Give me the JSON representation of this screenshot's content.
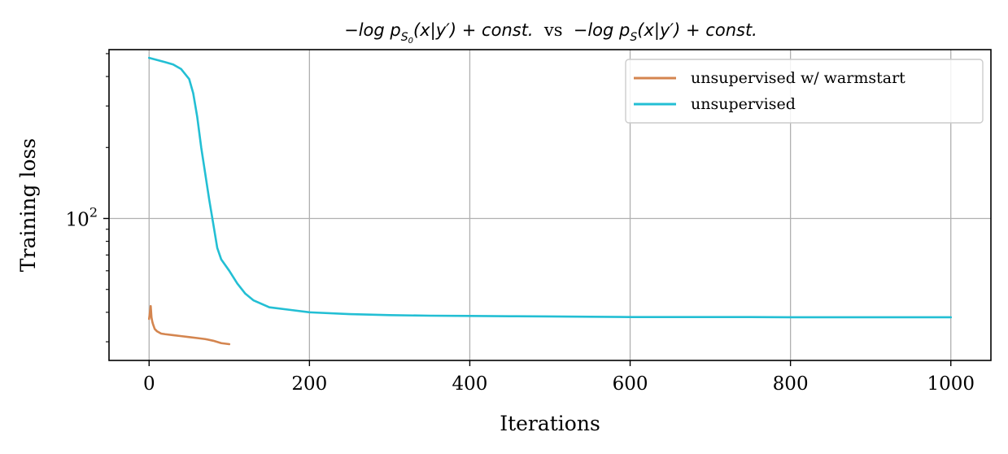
{
  "chart_data": {
    "type": "line",
    "title": {
      "part1": "−log p",
      "part1_sub": "S",
      "part1_subsub": "0",
      "part1_rest": "(x|y′) + const.",
      "vs": "vs",
      "part2": "−log p",
      "part2_sub": "S",
      "part2_rest": "(x|y′) + const."
    },
    "xlabel": "Iterations",
    "ylabel": "Training loss",
    "xlim": [
      -50,
      1050
    ],
    "ylim": [
      25,
      520
    ],
    "yscale": "log",
    "xticks": [
      0,
      200,
      400,
      600,
      800,
      1000
    ],
    "xtick_labels": [
      "0",
      "200",
      "400",
      "600",
      "800",
      "1000"
    ],
    "yticks_major": [
      100
    ],
    "ytick_major_labels": [
      {
        "base": "10",
        "exp": "2"
      }
    ],
    "yticks_minor": [
      30,
      40,
      50,
      60,
      70,
      80,
      90,
      200,
      300,
      400,
      500
    ],
    "grid": true,
    "legend_position": "top-right",
    "series": [
      {
        "name": "unsupervised w/ warmstart",
        "color": "#d4854f",
        "x": [
          0,
          2,
          3,
          4,
          5,
          7,
          10,
          15,
          20,
          30,
          40,
          50,
          60,
          70,
          80,
          90,
          100
        ],
        "y": [
          37.5,
          42.5,
          38.0,
          36.5,
          35.5,
          34.0,
          33.2,
          32.5,
          32.3,
          32.0,
          31.7,
          31.4,
          31.1,
          30.8,
          30.3,
          29.6,
          29.3
        ]
      },
      {
        "name": "unsupervised",
        "color": "#23bfd4",
        "x": [
          0,
          10,
          20,
          30,
          40,
          50,
          55,
          60,
          65,
          70,
          75,
          80,
          85,
          90,
          100,
          110,
          120,
          130,
          150,
          175,
          200,
          250,
          300,
          350,
          400,
          450,
          500,
          550,
          600,
          650,
          700,
          750,
          800,
          850,
          900,
          950,
          1000
        ],
        "y": [
          480,
          470,
          460,
          450,
          430,
          390,
          340,
          270,
          200,
          155,
          120,
          95,
          75,
          67,
          60,
          53,
          48,
          45,
          42,
          41,
          40,
          39.3,
          38.9,
          38.7,
          38.6,
          38.5,
          38.4,
          38.3,
          38.2,
          38.2,
          38.2,
          38.2,
          38.1,
          38.1,
          38.1,
          38.1,
          38.1
        ]
      }
    ]
  }
}
